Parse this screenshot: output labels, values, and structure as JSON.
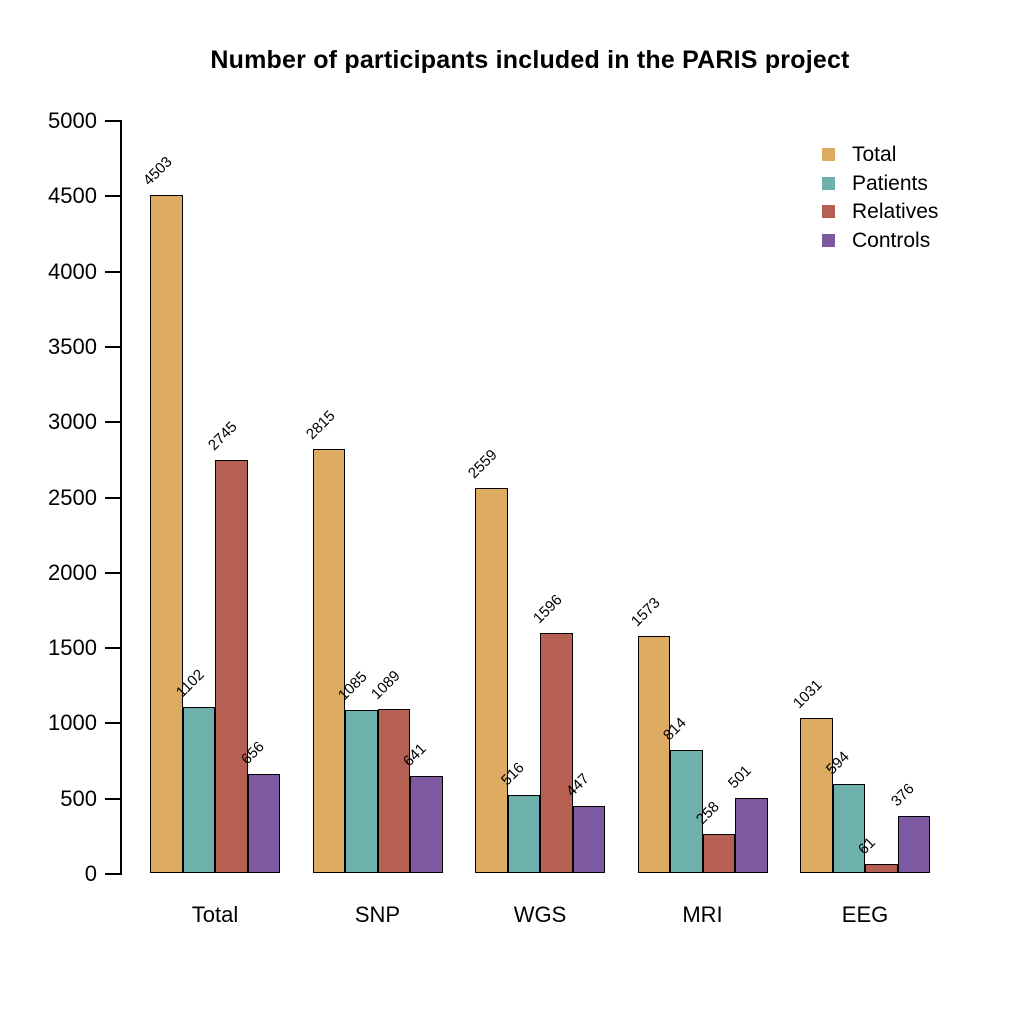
{
  "title": "Number of participants included in the PARIS project",
  "chart_data": {
    "type": "bar",
    "title": "Number of participants included in the PARIS project",
    "categories": [
      "Total",
      "SNP",
      "WGS",
      "MRI",
      "EEG"
    ],
    "series": [
      {
        "name": "Total",
        "color": "#DDAC62",
        "values": [
          4503,
          2815,
          2559,
          1573,
          1031
        ]
      },
      {
        "name": "Patients",
        "color": "#6EB0AC",
        "values": [
          1102,
          1085,
          516,
          814,
          594
        ]
      },
      {
        "name": "Relatives",
        "color": "#B56052",
        "values": [
          2745,
          1089,
          1596,
          258,
          61
        ]
      },
      {
        "name": "Controls",
        "color": "#7C59A0",
        "values": [
          656,
          641,
          447,
          501,
          376
        ]
      }
    ],
    "xlabel": "",
    "ylabel": "",
    "ylim": [
      0,
      5000
    ],
    "yticks": [
      0,
      500,
      1000,
      1500,
      2000,
      2500,
      3000,
      3500,
      4000,
      4500,
      5000
    ],
    "grid": false,
    "bar_value_labels_rotated_45deg": true,
    "legend": {
      "position": "top-right",
      "entries": [
        "Total",
        "Patients",
        "Relatives",
        "Controls"
      ]
    },
    "colors": {
      "background": "#ffffff",
      "axis": "#000000",
      "bar_border": "#000000",
      "text": "#000000"
    }
  }
}
